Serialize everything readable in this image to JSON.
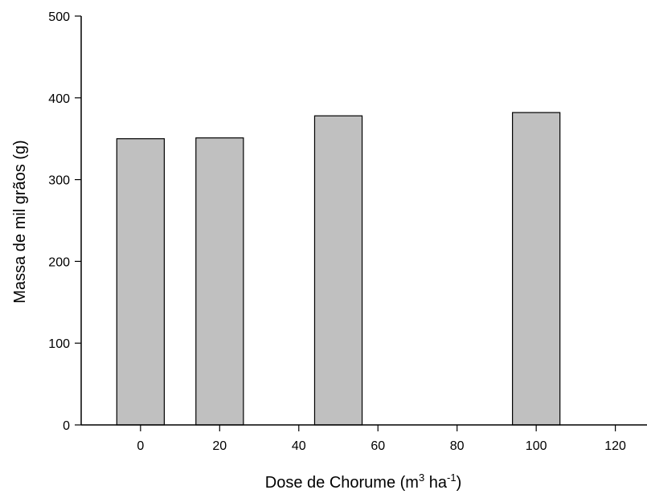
{
  "chart_data": {
    "type": "bar",
    "xlabel_main": "Dose de Chorume (m",
    "xlabel_sup1": "3",
    "xlabel_mid": " ha",
    "xlabel_sup2": "-1",
    "xlabel_end": ")",
    "ylabel": "Massa de mil grãos (g)",
    "xlim": [
      -15,
      128
    ],
    "ylim": [
      0,
      500
    ],
    "xticks": [
      0,
      20,
      40,
      60,
      80,
      100,
      120
    ],
    "yticks": [
      0,
      100,
      200,
      300,
      400,
      500
    ],
    "bar_width": 12,
    "bars": [
      {
        "x": 0,
        "value": 350
      },
      {
        "x": 20,
        "value": 351
      },
      {
        "x": 50,
        "value": 378
      },
      {
        "x": 100,
        "value": 382
      }
    ],
    "bar_color": "#c0c0c0",
    "bar_edge_color": "#000000",
    "grid": false
  }
}
